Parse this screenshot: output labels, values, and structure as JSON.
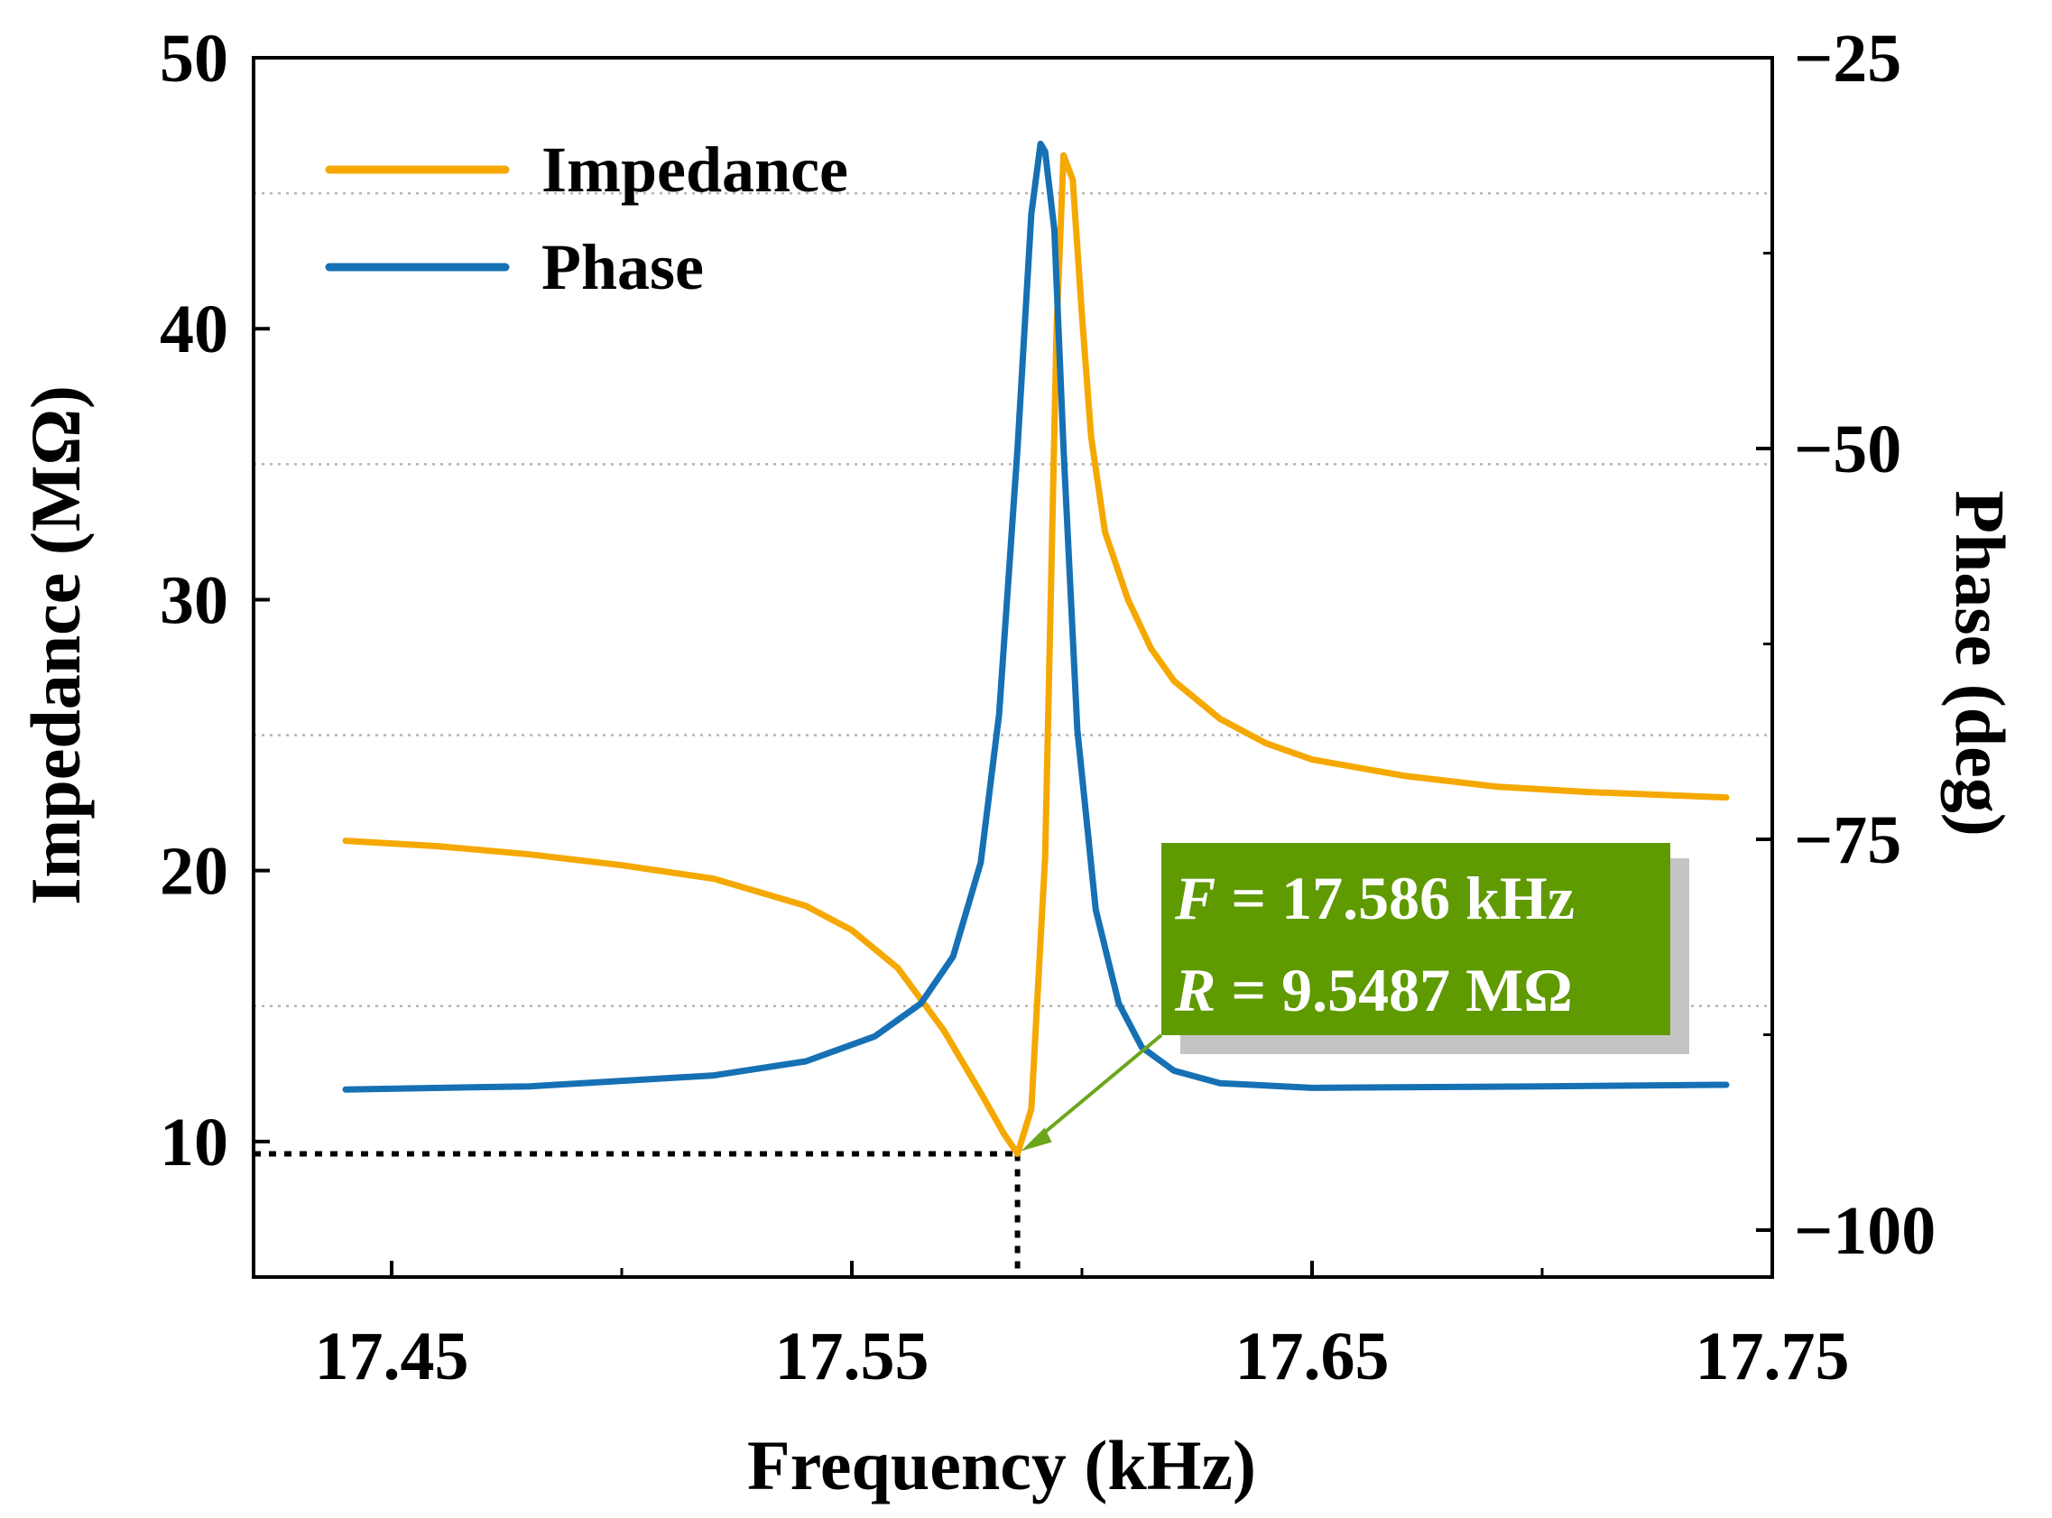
{
  "chart_data": {
    "type": "line",
    "title": "",
    "xlabel": "Frequency (kHz)",
    "ylabel": "Impedance (MΩ)",
    "y2label": "Phase (deg)",
    "xlim": [
      17.42,
      17.75
    ],
    "ylim": [
      5,
      50
    ],
    "y2lim": [
      -103,
      -25
    ],
    "x_ticks": [
      17.45,
      17.55,
      17.65,
      17.75
    ],
    "x_tick_labels": [
      "17.45",
      "17.55",
      "17.65",
      "17.75"
    ],
    "y_ticks": [
      10,
      20,
      30,
      40,
      50
    ],
    "y_tick_labels": [
      "10",
      "20",
      "30",
      "40",
      "50"
    ],
    "y2_ticks": [
      -25,
      -50,
      -75,
      -100
    ],
    "y2_tick_labels": [
      "−25",
      "−50",
      "−75",
      "−100"
    ],
    "y_gridlines": [
      15,
      25,
      35,
      45
    ],
    "legend_position": "top-left",
    "series": [
      {
        "name": "Impedance",
        "axis": "left",
        "color": "#F5A800",
        "x": [
          17.44,
          17.46,
          17.48,
          17.5,
          17.52,
          17.54,
          17.55,
          17.56,
          17.57,
          17.578,
          17.583,
          17.586,
          17.589,
          17.592,
          17.5945,
          17.596,
          17.598,
          17.6,
          17.602,
          17.605,
          17.61,
          17.615,
          17.62,
          17.63,
          17.64,
          17.65,
          17.67,
          17.69,
          17.71,
          17.74
        ],
        "values": [
          21.1,
          20.9,
          20.6,
          20.2,
          19.7,
          18.7,
          17.8,
          16.4,
          14.1,
          11.8,
          10.3,
          9.55,
          11.2,
          20.5,
          40.0,
          46.4,
          45.5,
          40.5,
          36.0,
          32.5,
          30.0,
          28.2,
          27.0,
          25.6,
          24.7,
          24.1,
          23.5,
          23.1,
          22.9,
          22.7
        ]
      },
      {
        "name": "Phase",
        "axis": "right",
        "color": "#1670B4",
        "x": [
          17.44,
          17.48,
          17.52,
          17.54,
          17.555,
          17.565,
          17.572,
          17.578,
          17.582,
          17.586,
          17.589,
          17.591,
          17.592,
          17.594,
          17.596,
          17.599,
          17.603,
          17.608,
          17.613,
          17.62,
          17.63,
          17.65,
          17.7,
          17.74
        ],
        "values": [
          -91.0,
          -90.8,
          -90.1,
          -89.2,
          -87.6,
          -85.5,
          -82.5,
          -76.5,
          -67.0,
          -50.0,
          -35.0,
          -30.5,
          -31.0,
          -36.0,
          -50.0,
          -68.0,
          -79.5,
          -85.5,
          -88.3,
          -89.8,
          -90.6,
          -90.9,
          -90.8,
          -90.7
        ]
      }
    ],
    "annotation": {
      "x": 17.586,
      "y": 9.5487,
      "line1_var": "F",
      "line1_rest": " = 17.586 kHz",
      "line2_var": "R",
      "line2_rest": " = 9.5487 MΩ",
      "box_color": "#5E9A00",
      "arrow_color": "#6BA61A"
    }
  }
}
